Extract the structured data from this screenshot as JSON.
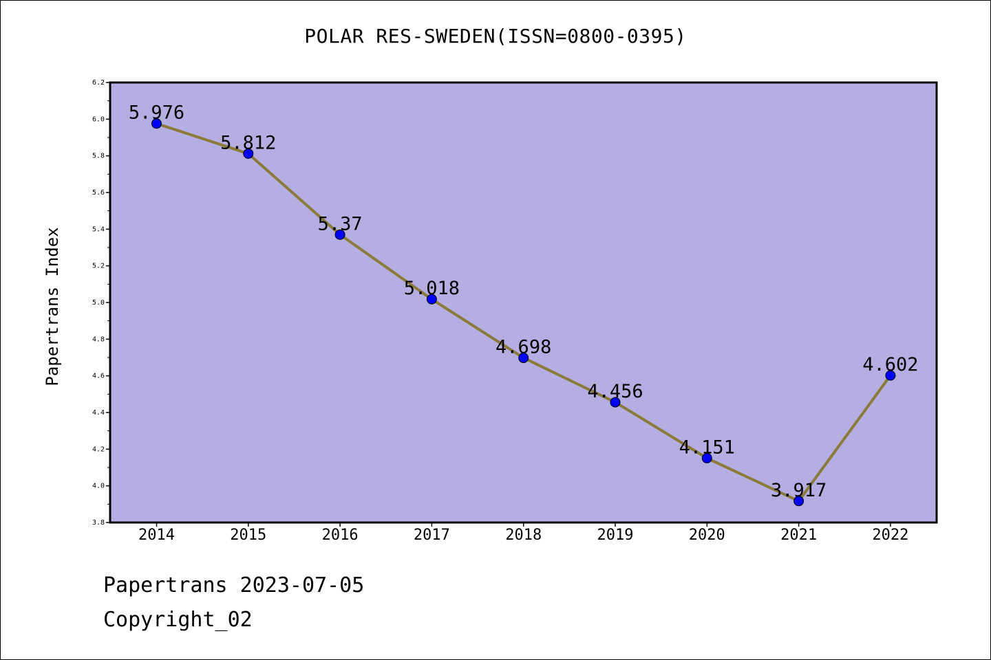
{
  "chart_data": {
    "type": "line",
    "title": "POLAR RES-SWEDEN(ISSN=0800-0395)",
    "xlabel": "",
    "ylabel": "Papertrans Index",
    "categories": [
      "2014",
      "2015",
      "2016",
      "2017",
      "2018",
      "2019",
      "2020",
      "2021",
      "2022"
    ],
    "series": [
      {
        "values": [
          5.976,
          5.812,
          5.37,
          5.018,
          4.698,
          4.456,
          4.151,
          3.917,
          4.602
        ],
        "labels": [
          "5.976",
          "5.812",
          "5.37",
          "5.018",
          "4.698",
          "4.456",
          "4.151",
          "3.917",
          "4.602"
        ]
      }
    ],
    "ylim": [
      3.8,
      6.2
    ],
    "yticks": [
      "3.8",
      "4.0",
      "4.2",
      "4.4",
      "4.6",
      "4.8",
      "5.0",
      "5.2",
      "5.4",
      "5.6",
      "5.8",
      "6.0",
      "6.2"
    ],
    "grid": false,
    "colors": {
      "plot_background": "#b5aee2",
      "line": "#8b7b3a",
      "marker": "#0000ff"
    }
  },
  "footer": {
    "line1": "Papertrans 2023-07-05",
    "line2": "Copyright_02"
  }
}
